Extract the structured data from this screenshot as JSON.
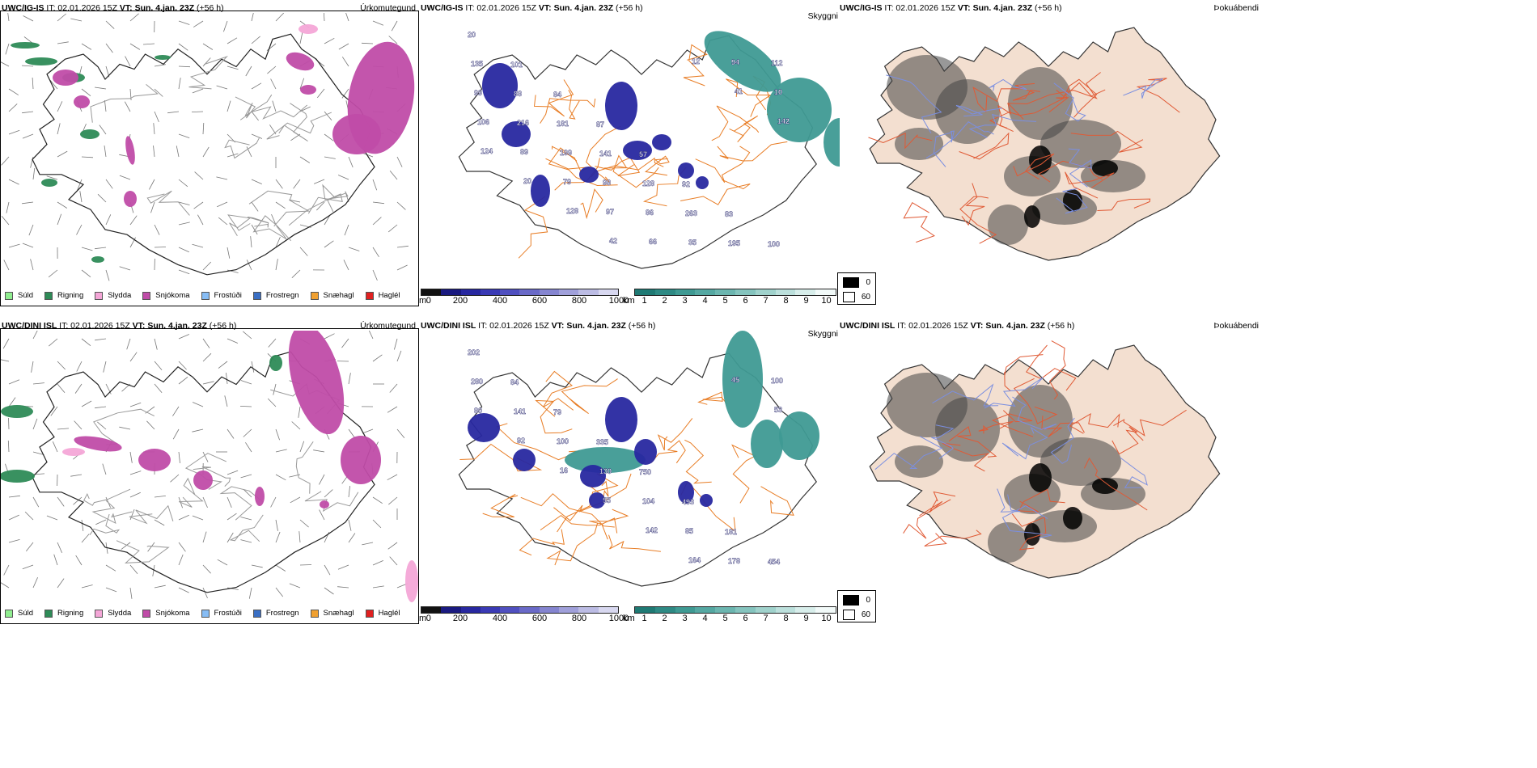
{
  "rows": [
    {
      "model": "UWC/IG-IS",
      "it_label": "IT: 02.01.2026 15Z",
      "vt_prefix": "VT:",
      "vt_value": "Sun. 4.jan. 23Z",
      "lead": "(+56 h)",
      "panel_names": [
        "Úrkomutegund",
        "Skyggni",
        "Þokuábendi"
      ],
      "visibility_labels": [
        "20",
        "101",
        "84",
        "87",
        "57",
        "92",
        "83",
        "100",
        "135",
        "88",
        "181",
        "141",
        "128",
        "263",
        "195",
        "112",
        "99",
        "216",
        "199",
        "98",
        "86",
        "35",
        "94",
        "10",
        "106",
        "89",
        "79",
        "97",
        "66",
        "12",
        "41",
        "142",
        "124",
        "20",
        "128",
        "42"
      ]
    },
    {
      "model": "UWC/DINI ISL",
      "it_label": "IT: 02.01.2026 15Z",
      "vt_prefix": "VT:",
      "vt_value": "Sun. 4.jan. 23Z",
      "lead": "(+56 h)",
      "panel_names": [
        "Úrkomutegund",
        "Skyggni",
        "Þokuábendi"
      ],
      "visibility_labels": [
        "202",
        "84",
        "79",
        "335",
        "750",
        "493",
        "181",
        "454",
        "280",
        "141",
        "100",
        "130",
        "104",
        "85",
        "178",
        "100",
        "80",
        "92",
        "16",
        "55",
        "142",
        "164",
        "45",
        "53"
      ]
    }
  ],
  "precip_legend": [
    {
      "label": "Súld",
      "color": "#90ee90"
    },
    {
      "label": "Rigning",
      "color": "#2e8b57"
    },
    {
      "label": "Slydda",
      "color": "#f4a6d7"
    },
    {
      "label": "Snjókoma",
      "color": "#c04ca8"
    },
    {
      "label": "Frostúði",
      "color": "#87bdf5"
    },
    {
      "label": "Frostregn",
      "color": "#3a6fc4"
    },
    {
      "label": "Snæhagl",
      "color": "#f0a030"
    },
    {
      "label": "Haglél",
      "color": "#e02020"
    }
  ],
  "ceiling_scale": {
    "unit": "m",
    "ticks": [
      "0",
      "200",
      "400",
      "600",
      "800",
      "1000"
    ],
    "colors": [
      "#111111",
      "#1a1a80",
      "#2828a0",
      "#3a3ab5",
      "#5050c0",
      "#6a6ac8",
      "#8585d0",
      "#a0a0da",
      "#bcbce4",
      "#d8d8f0"
    ]
  },
  "visibility_scale": {
    "unit": "km",
    "ticks": [
      "1",
      "2",
      "3",
      "4",
      "5",
      "6",
      "7",
      "8",
      "9",
      "10"
    ],
    "colors": [
      "#1f7a74",
      "#2e8a84",
      "#3f9a93",
      "#55a8a2",
      "#6cb6b0",
      "#85c4be",
      "#a0d2cc",
      "#bce0dc",
      "#d8eeeb",
      "#f2faf9"
    ]
  },
  "fog_legend": [
    {
      "label": "0",
      "color": "#000000"
    },
    {
      "label": "60",
      "color": "#ffffff"
    }
  ],
  "colors": {
    "rain": "#2e8b57",
    "snow": "#c04ca8",
    "sleet": "#f4a6d7",
    "ceiling": "#2828a0",
    "visibility": "#3f9a93",
    "roads": "#e87d25",
    "land_fog": "#f3dfd0",
    "rivers": "#7b8fe0"
  }
}
